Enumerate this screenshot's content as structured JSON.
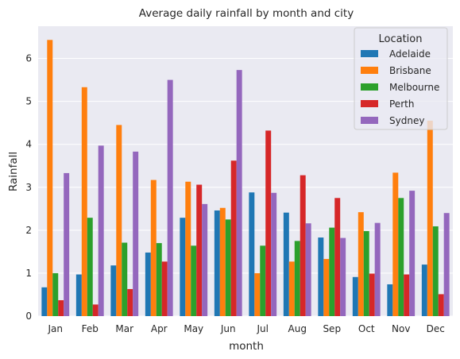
{
  "chart_data": {
    "type": "bar",
    "title": "Average daily rainfall by month and city",
    "xlabel": "month",
    "ylabel": "Rainfall",
    "categories": [
      "Jan",
      "Feb",
      "Mar",
      "Apr",
      "May",
      "Jun",
      "Jul",
      "Aug",
      "Sep",
      "Oct",
      "Nov",
      "Dec"
    ],
    "yticks": [
      0,
      1,
      2,
      3,
      4,
      5,
      6
    ],
    "ylim": [
      0,
      6.75
    ],
    "grid": true,
    "legend": {
      "title": "Location",
      "placement": "top-right"
    },
    "series": [
      {
        "name": "Adelaide",
        "color": "#1f77b4",
        "values": [
          0.67,
          0.97,
          1.18,
          1.48,
          2.29,
          2.46,
          2.88,
          2.41,
          1.83,
          0.91,
          0.74,
          1.2
        ]
      },
      {
        "name": "Brisbane",
        "color": "#ff7f0e",
        "values": [
          6.43,
          5.33,
          4.45,
          3.17,
          3.13,
          2.52,
          1.0,
          1.27,
          1.33,
          2.42,
          3.34,
          4.55
        ]
      },
      {
        "name": "Melbourne",
        "color": "#2ca02c",
        "values": [
          1.0,
          2.29,
          1.71,
          1.7,
          1.64,
          2.25,
          1.64,
          1.75,
          2.06,
          1.98,
          2.75,
          2.09
        ]
      },
      {
        "name": "Perth",
        "color": "#d62728",
        "values": [
          0.37,
          0.27,
          0.63,
          1.27,
          3.06,
          3.62,
          4.32,
          3.28,
          2.75,
          0.99,
          0.97,
          0.51
        ]
      },
      {
        "name": "Sydney",
        "color": "#9467bd",
        "values": [
          3.33,
          3.97,
          3.83,
          5.5,
          2.61,
          5.73,
          2.87,
          2.16,
          1.82,
          2.17,
          2.92,
          2.4
        ]
      }
    ]
  }
}
